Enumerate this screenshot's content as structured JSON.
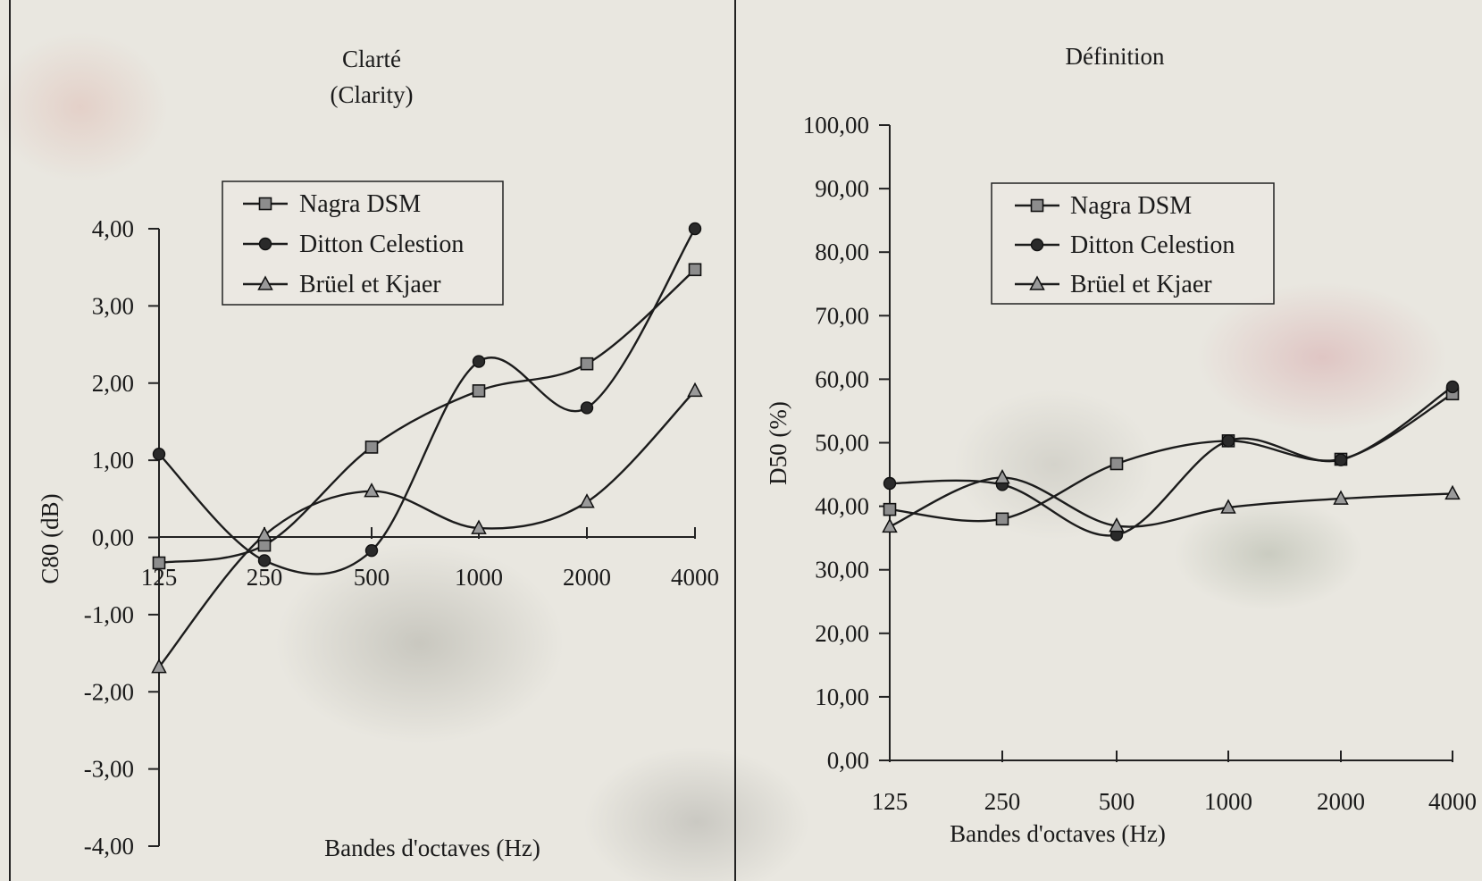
{
  "chart_data": [
    {
      "type": "line",
      "title": "Clarté",
      "subtitle": "(Clarity)",
      "xlabel": "Bandes d'octaves (Hz)",
      "ylabel": "C80 (dB)",
      "categories": [
        "125",
        "250",
        "500",
        "1000",
        "2000",
        "4000"
      ],
      "yticks": [
        "4,00",
        "3,00",
        "2,00",
        "1,00",
        "0,00",
        "-1,00",
        "-2,00",
        "-3,00",
        "-4,00"
      ],
      "ylim": [
        -4,
        4
      ],
      "legend_position": "top-left",
      "grid": false,
      "series": [
        {
          "name": "Nagra DSM",
          "marker": "square",
          "values": [
            -0.33,
            -0.1,
            1.17,
            1.9,
            2.25,
            3.47
          ]
        },
        {
          "name": "Ditton Celestion",
          "marker": "circle",
          "values": [
            1.08,
            -0.3,
            -0.17,
            2.28,
            1.68,
            4.0
          ]
        },
        {
          "name": "Brüel et Kjaer",
          "marker": "triangle",
          "values": [
            -1.68,
            0.03,
            0.6,
            0.12,
            0.46,
            1.9
          ]
        }
      ]
    },
    {
      "type": "line",
      "title": "Définition",
      "xlabel": "Bandes d'octaves (Hz)",
      "ylabel": "D50 (%)",
      "categories": [
        "125",
        "250",
        "500",
        "1000",
        "2000",
        "4000"
      ],
      "yticks": [
        "100,00",
        "90,00",
        "80,00",
        "70,00",
        "60,00",
        "50,00",
        "40,00",
        "30,00",
        "20,00",
        "10,00",
        "0,00"
      ],
      "ylim": [
        0,
        100
      ],
      "legend_position": "top-center",
      "grid": false,
      "series": [
        {
          "name": "Nagra DSM",
          "marker": "square",
          "values": [
            39.5,
            38.0,
            46.7,
            50.3,
            47.4,
            57.7
          ]
        },
        {
          "name": "Ditton Celestion",
          "marker": "circle",
          "values": [
            43.6,
            43.4,
            35.5,
            50.3,
            47.3,
            58.8
          ]
        },
        {
          "name": "Brüel et Kjaer",
          "marker": "triangle",
          "values": [
            36.8,
            44.5,
            36.9,
            39.8,
            41.2,
            42.0
          ]
        }
      ]
    }
  ]
}
